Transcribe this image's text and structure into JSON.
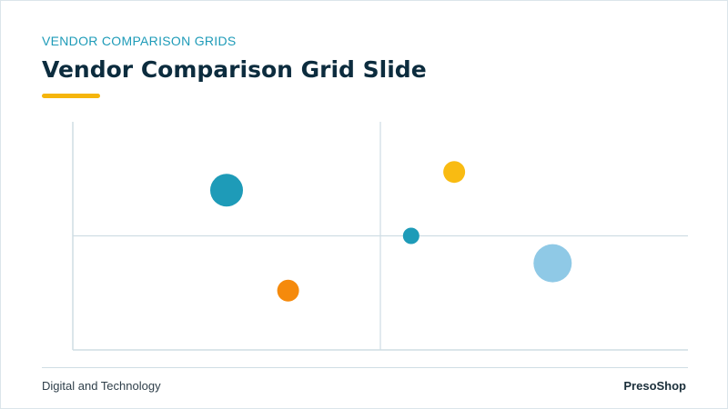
{
  "slide": {
    "eyebrow": "VENDOR COMPARISON GRIDS",
    "title": "Vendor Comparison Grid Slide",
    "accent_color": "#f5b50c",
    "title_color": "#0c2c3e",
    "eyebrow_color": "#1e9bb8"
  },
  "footer": {
    "left": "Digital and Technology",
    "right": "PresoShop"
  },
  "chart_data": {
    "type": "scatter",
    "title": "",
    "xlabel": "",
    "ylabel": "",
    "xlim": [
      0,
      10
    ],
    "ylim": [
      0,
      10
    ],
    "quadrant_dividers": {
      "x": 5,
      "y": 5
    },
    "series": [
      {
        "points": [
          {
            "x": 2.5,
            "y": 7.0,
            "size": 3,
            "color": "#1e9bb8"
          },
          {
            "x": 3.5,
            "y": 2.6,
            "size": 2,
            "color": "#f58a0c"
          },
          {
            "x": 6.2,
            "y": 7.8,
            "size": 2,
            "color": "#f9bb12"
          },
          {
            "x": 5.5,
            "y": 5.0,
            "size": 1.5,
            "color": "#1e9bb8"
          },
          {
            "x": 7.8,
            "y": 3.8,
            "size": 3.5,
            "color": "#8fc9e6"
          }
        ]
      }
    ]
  }
}
